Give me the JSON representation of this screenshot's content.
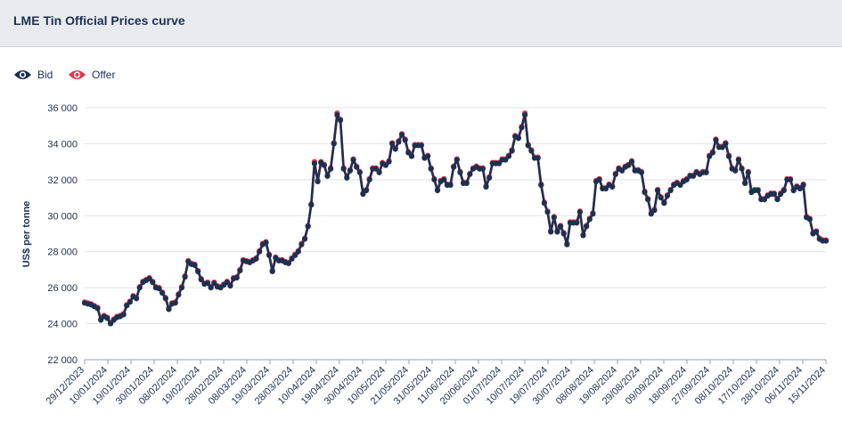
{
  "header": {
    "title": "LME Tin Official Prices curve"
  },
  "legend": {
    "bid_label": "Bid",
    "offer_label": "Offer"
  },
  "colors": {
    "bid": "#1e3050",
    "offer": "#e0384b",
    "grid": "#e1e3e6",
    "text": "#1e3050"
  },
  "chart_data": {
    "type": "line",
    "title": "",
    "xlabel": "",
    "ylabel": "US$ per tonne",
    "ylim": [
      22000,
      36000
    ],
    "yticks": [
      22000,
      24000,
      26000,
      28000,
      30000,
      32000,
      34000,
      36000
    ],
    "ytick_labels": [
      "22 000",
      "24 000",
      "26 000",
      "28 000",
      "30 000",
      "32 000",
      "34 000",
      "36 000"
    ],
    "grid": true,
    "legend_position": "top-left",
    "x_tick_labels": [
      "29/12/2023",
      "10/01/2024",
      "19/01/2024",
      "30/01/2024",
      "08/02/2024",
      "19/02/2024",
      "28/02/2024",
      "08/03/2024",
      "19/03/2024",
      "28/03/2024",
      "10/04/2024",
      "19/04/2024",
      "30/04/2024",
      "10/05/2024",
      "21/05/2024",
      "31/05/2024",
      "11/06/2024",
      "20/06/2024",
      "01/07/2024",
      "10/07/2024",
      "19/07/2024",
      "30/07/2024",
      "08/08/2024",
      "19/08/2024",
      "29/08/2024",
      "09/09/2024",
      "18/09/2024",
      "27/09/2024",
      "08/10/2024",
      "17/10/2024",
      "28/10/2024",
      "06/11/2024",
      "15/11/2024"
    ],
    "series": [
      {
        "name": "Bid",
        "values": [
          25150,
          25100,
          25050,
          24950,
          24850,
          24200,
          24400,
          24300,
          24000,
          24200,
          24350,
          24400,
          24500,
          25000,
          25200,
          25500,
          25400,
          26000,
          26300,
          26400,
          26500,
          26300,
          26000,
          25950,
          25700,
          25400,
          24800,
          25100,
          25150,
          25600,
          26000,
          26600,
          27450,
          27300,
          27250,
          26900,
          26450,
          26200,
          26250,
          26000,
          26250,
          26050,
          26000,
          26150,
          26300,
          26100,
          26500,
          26550,
          26950,
          27500,
          27450,
          27400,
          27500,
          27600,
          28000,
          28400,
          28500,
          27800,
          26900,
          27650,
          27500,
          27500,
          27400,
          27350,
          27600,
          27800,
          28000,
          28400,
          28700,
          29400,
          30600,
          32900,
          31900,
          32950,
          32800,
          32200,
          32600,
          34000,
          35600,
          35300,
          32600,
          32100,
          32500,
          33100,
          32700,
          32400,
          31200,
          31400,
          32000,
          32600,
          32600,
          32400,
          32900,
          32800,
          33000,
          34000,
          33700,
          34100,
          34500,
          34200,
          33500,
          33300,
          33900,
          33900,
          33900,
          33200,
          33300,
          32600,
          32000,
          31400,
          31900,
          32000,
          31700,
          31700,
          32700,
          33100,
          32400,
          31800,
          31800,
          32300,
          32600,
          32700,
          32600,
          32600,
          31600,
          32100,
          32900,
          32900,
          32900,
          33100,
          33100,
          33300,
          33600,
          34400,
          34300,
          34900,
          35600,
          33900,
          33600,
          33200,
          33200,
          31700,
          30700,
          30200,
          29100,
          29900,
          29100,
          29400,
          29000,
          28400,
          29600,
          29600,
          29600,
          30200,
          28900,
          29400,
          29800,
          30100,
          31900,
          32000,
          31500,
          31500,
          31700,
          31600,
          32300,
          32600,
          32500,
          32700,
          32800,
          33000,
          32500,
          32500,
          32400,
          31300,
          30900,
          30100,
          30300,
          31400,
          31000,
          30700,
          31100,
          31400,
          31700,
          31800,
          31700,
          31900,
          32000,
          32200,
          32200,
          32400,
          32300,
          32400,
          32400,
          33300,
          33500,
          34200,
          33800,
          33800,
          34000,
          33300,
          32600,
          32500,
          33100,
          32600,
          31800,
          32400,
          31300,
          31400,
          31400,
          30900,
          30900,
          31100,
          31200,
          31200,
          30900,
          31200,
          31400,
          32000,
          32000,
          31400,
          31600,
          31500,
          31700,
          29900,
          29800,
          29000,
          29100,
          28700,
          28600,
          28600
        ]
      },
      {
        "name": "Offer",
        "values": [
          25200,
          25150,
          25100,
          25000,
          24900,
          24250,
          24450,
          24350,
          24050,
          24250,
          24400,
          24450,
          24550,
          25050,
          25250,
          25550,
          25450,
          26050,
          26350,
          26450,
          26550,
          26350,
          26050,
          26000,
          25750,
          25450,
          24850,
          25150,
          25200,
          25650,
          26050,
          26650,
          27500,
          27350,
          27300,
          26950,
          26500,
          26250,
          26300,
          26050,
          26300,
          26100,
          26050,
          26200,
          26350,
          26150,
          26550,
          26600,
          27000,
          27550,
          27500,
          27450,
          27550,
          27650,
          28050,
          28450,
          28550,
          27850,
          26950,
          27700,
          27550,
          27550,
          27450,
          27400,
          27650,
          27850,
          28050,
          28450,
          28750,
          29450,
          30650,
          33000,
          31950,
          33000,
          32850,
          32250,
          32650,
          34050,
          35700,
          35350,
          32650,
          32150,
          32550,
          33150,
          32750,
          32450,
          31250,
          31450,
          32050,
          32650,
          32650,
          32450,
          32950,
          32850,
          33050,
          34050,
          33750,
          34150,
          34550,
          34250,
          33550,
          33350,
          33950,
          33950,
          33950,
          33250,
          33350,
          32650,
          32050,
          31450,
          31950,
          32050,
          31750,
          31750,
          32750,
          33150,
          32450,
          31850,
          31850,
          32350,
          32650,
          32750,
          32650,
          32650,
          31650,
          32150,
          32950,
          32950,
          32950,
          33150,
          33150,
          33350,
          33650,
          34450,
          34350,
          34950,
          35700,
          33950,
          33650,
          33250,
          33250,
          31750,
          30750,
          30250,
          29150,
          29950,
          29150,
          29450,
          29050,
          28450,
          29650,
          29650,
          29650,
          30250,
          28950,
          29450,
          29850,
          30150,
          31950,
          32050,
          31550,
          31550,
          31750,
          31650,
          32350,
          32650,
          32550,
          32750,
          32850,
          33050,
          32550,
          32550,
          32450,
          31350,
          30950,
          30150,
          30350,
          31450,
          31050,
          30750,
          31150,
          31450,
          31750,
          31850,
          31750,
          31950,
          32050,
          32250,
          32250,
          32450,
          32350,
          32450,
          32450,
          33350,
          33550,
          34250,
          33850,
          33850,
          34050,
          33350,
          32650,
          32550,
          33150,
          32650,
          31850,
          32450,
          31350,
          31450,
          31450,
          30950,
          30950,
          31150,
          31250,
          31250,
          30950,
          31250,
          31450,
          32050,
          32050,
          31450,
          31650,
          31550,
          31750,
          29950,
          29850,
          29050,
          29150,
          28750,
          28650,
          28650
        ]
      }
    ]
  }
}
